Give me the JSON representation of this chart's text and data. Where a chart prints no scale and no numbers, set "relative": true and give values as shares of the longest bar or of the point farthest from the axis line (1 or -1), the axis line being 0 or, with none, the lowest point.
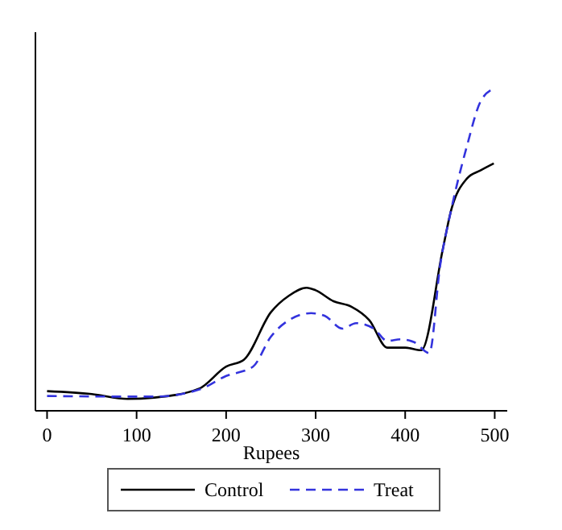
{
  "chart_data": {
    "type": "line",
    "xlabel": "Rupees",
    "relative": true,
    "xlim": [
      -13,
      514
    ],
    "xticks": [
      0,
      100,
      200,
      300,
      400,
      500
    ],
    "legend": "bottom",
    "tick_labels": "x",
    "series": [
      {
        "name": "Control",
        "color": "#000000",
        "line_style": "solid",
        "x": [
          0,
          50,
          90,
          120,
          170,
          200,
          220,
          250,
          270,
          290,
          300,
          320,
          340,
          360,
          380,
          400,
          418,
          442,
          451,
          469,
          484,
          499
        ],
        "values": [
          0.061,
          0.052,
          0.037,
          0.041,
          0.069,
          0.137,
          0.159,
          0.306,
          0.357,
          0.382,
          0.374,
          0.34,
          0.323,
          0.281,
          0.196,
          0.196,
          0.188,
          0.501,
          0.619,
          0.721,
          0.746,
          0.768
        ]
      },
      {
        "name": "Treat",
        "color": "#3333dd",
        "line_style": "dashed",
        "x": [
          0,
          90,
          120,
          170,
          200,
          230,
          250,
          270,
          295,
          310,
          330,
          345,
          365,
          380,
          395,
          410,
          427,
          439,
          451,
          469,
          484,
          499
        ],
        "values": [
          0.046,
          0.044,
          0.044,
          0.066,
          0.108,
          0.137,
          0.23,
          0.281,
          0.303,
          0.295,
          0.255,
          0.272,
          0.255,
          0.217,
          0.222,
          0.213,
          0.179,
          0.45,
          0.619,
          0.822,
          0.959,
          1.0
        ]
      }
    ]
  }
}
